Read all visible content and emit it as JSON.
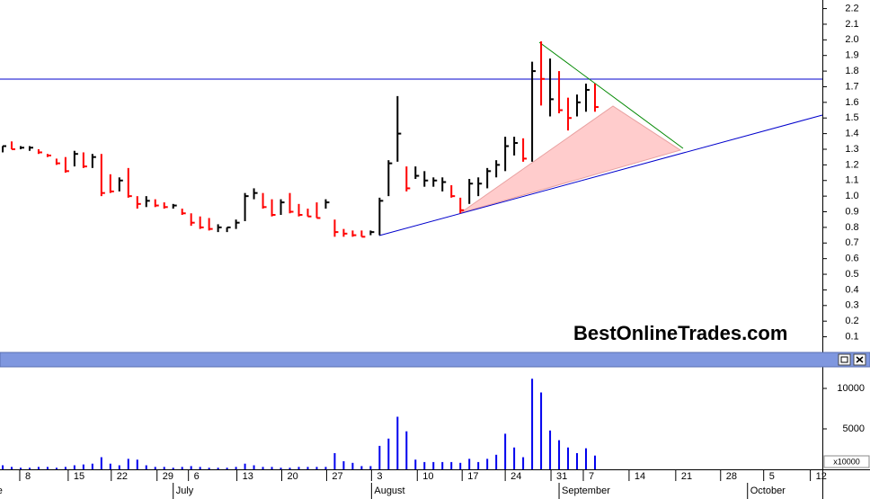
{
  "chart_data": [
    {
      "type": "hlc",
      "annotation": "BestOnlineTrades.com",
      "x": [
        -2.5,
        -1.5,
        -0.5,
        0.5,
        1.5,
        2.5,
        3.5,
        4.5,
        5.5,
        6.5,
        7.5,
        8.5,
        9.5,
        10.5,
        11.5,
        12.5,
        13.5,
        14.5,
        15.5,
        16.5,
        17.5,
        18.5,
        19.5,
        20.5,
        21.5,
        22.5,
        23.5,
        24.5,
        25.5,
        26.5,
        27.5,
        28.5,
        29.5,
        30.5,
        31.5,
        32.5,
        33.5,
        34.5,
        35.5,
        36.5,
        37.5,
        38.5,
        39.5,
        40.5,
        41.5,
        42.5,
        43.5,
        44.5,
        45.5,
        46.5,
        47.5,
        48.5,
        49.5,
        50.5,
        51.5,
        52.5,
        53.5,
        54.5,
        55.5,
        56.5,
        57.5,
        58.5,
        59.5,
        60.5,
        61.5,
        62.5,
        63.5
      ],
      "high": [
        1.32,
        1.35,
        1.32,
        1.32,
        1.3,
        1.27,
        1.24,
        1.25,
        1.29,
        1.28,
        1.27,
        1.27,
        1.14,
        1.12,
        1.18,
        1.0,
        1.0,
        0.98,
        0.96,
        0.95,
        0.92,
        0.89,
        0.87,
        0.86,
        0.82,
        0.8,
        0.85,
        1.02,
        1.05,
        1.02,
        0.98,
        0.98,
        1.02,
        0.95,
        0.92,
        0.96,
        0.98,
        0.85,
        0.79,
        0.78,
        0.78,
        0.78,
        0.99,
        1.23,
        1.64,
        1.19,
        1.19,
        1.16,
        1.12,
        1.12,
        1.07,
        0.99,
        1.11,
        1.12,
        1.18,
        1.23,
        1.38,
        1.38,
        1.37,
        1.86,
        1.99,
        1.88,
        1.8,
        1.63,
        1.65,
        1.72,
        1.72
      ],
      "low": [
        1.28,
        1.3,
        1.3,
        1.29,
        1.27,
        1.25,
        1.2,
        1.15,
        1.19,
        1.18,
        1.18,
        1.0,
        1.02,
        1.03,
        0.99,
        0.92,
        0.93,
        0.93,
        0.92,
        0.92,
        0.88,
        0.81,
        0.79,
        0.78,
        0.77,
        0.77,
        0.79,
        0.84,
        0.98,
        0.92,
        0.87,
        0.88,
        0.89,
        0.87,
        0.87,
        0.86,
        0.92,
        0.74,
        0.74,
        0.74,
        0.74,
        0.75,
        0.75,
        1.0,
        1.22,
        1.03,
        1.11,
        1.06,
        1.06,
        1.03,
        0.99,
        0.89,
        0.95,
        1.0,
        1.05,
        1.12,
        1.16,
        1.26,
        1.22,
        1.22,
        1.58,
        1.51,
        1.53,
        1.42,
        1.51,
        1.54,
        1.54
      ],
      "close": [
        1.32,
        1.3,
        1.31,
        1.31,
        1.28,
        1.26,
        1.21,
        1.16,
        1.27,
        1.19,
        1.25,
        1.02,
        1.03,
        1.1,
        1.0,
        0.95,
        0.97,
        0.94,
        0.93,
        0.94,
        0.89,
        0.83,
        0.8,
        0.79,
        0.8,
        0.8,
        0.83,
        1.0,
        1.02,
        0.93,
        0.88,
        0.96,
        0.9,
        0.88,
        0.87,
        0.86,
        0.96,
        0.77,
        0.76,
        0.75,
        0.74,
        0.77,
        0.97,
        1.21,
        1.4,
        1.05,
        1.13,
        1.1,
        1.1,
        1.09,
        1.0,
        0.91,
        1.08,
        1.08,
        1.16,
        1.2,
        1.32,
        1.34,
        1.24,
        1.8,
        1.75,
        1.62,
        1.55,
        1.5,
        1.6,
        1.68,
        1.57
      ],
      "colors": [
        "#000000",
        "#ff0000",
        "#000000",
        "#000000",
        "#ff0000",
        "#ff0000",
        "#ff0000",
        "#ff0000",
        "#000000",
        "#ff0000",
        "#000000",
        "#ff0000",
        "#ff0000",
        "#000000",
        "#ff0000",
        "#ff0000",
        "#000000",
        "#ff0000",
        "#ff0000",
        "#000000",
        "#ff0000",
        "#ff0000",
        "#ff0000",
        "#ff0000",
        "#000000",
        "#000000",
        "#000000",
        "#000000",
        "#000000",
        "#ff0000",
        "#ff0000",
        "#000000",
        "#ff0000",
        "#ff0000",
        "#ff0000",
        "#ff0000",
        "#000000",
        "#ff0000",
        "#ff0000",
        "#ff0000",
        "#ff0000",
        "#000000",
        "#000000",
        "#000000",
        "#000000",
        "#ff0000",
        "#000000",
        "#000000",
        "#000000",
        "#000000",
        "#ff0000",
        "#ff0000",
        "#000000",
        "#000000",
        "#000000",
        "#000000",
        "#000000",
        "#000000",
        "#ff0000",
        "#000000",
        "#ff0000",
        "#000000",
        "#ff0000",
        "#ff0000",
        "#000000",
        "#000000",
        "#ff0000"
      ],
      "xlim": [
        -2.8,
        88.84
      ],
      "ylim": [
        0.04,
        2.255
      ],
      "yticks": [
        0.1,
        0.2,
        0.3,
        0.4,
        0.5,
        0.6,
        0.7,
        0.8,
        0.9,
        {
          "value": 1,
          "label": "1.0"
        },
        1.1,
        1.2,
        1.3,
        1.4,
        1.5,
        1.6,
        1.7,
        1.8,
        1.9,
        {
          "value": 2,
          "label": "2.0"
        },
        2.1,
        2.2
      ]
    },
    {
      "type": "bar",
      "x": [
        -2.5,
        -1.5,
        -0.5,
        0.5,
        1.5,
        2.5,
        3.5,
        4.5,
        5.5,
        6.5,
        7.5,
        8.5,
        9.5,
        10.5,
        11.5,
        12.5,
        13.5,
        14.5,
        15.5,
        16.5,
        17.5,
        18.5,
        19.5,
        20.5,
        21.5,
        22.5,
        23.5,
        24.5,
        25.5,
        26.5,
        27.5,
        28.5,
        29.5,
        30.5,
        31.5,
        32.5,
        33.5,
        34.5,
        35.5,
        36.5,
        37.5,
        38.5,
        39.5,
        40.5,
        41.5,
        42.5,
        43.5,
        44.5,
        45.5,
        46.5,
        47.5,
        48.5,
        49.5,
        50.5,
        51.5,
        52.5,
        53.5,
        54.5,
        55.5,
        56.5,
        57.5,
        58.5,
        59.5,
        60.5,
        61.5,
        62.5,
        63.5
      ],
      "values": [
        500,
        300,
        200,
        200,
        300,
        300,
        200,
        300,
        500,
        600,
        700,
        1500,
        700,
        500,
        1300,
        1200,
        500,
        300,
        300,
        200,
        300,
        400,
        300,
        200,
        200,
        200,
        300,
        700,
        500,
        300,
        300,
        200,
        200,
        300,
        300,
        300,
        300,
        2000,
        1000,
        800,
        400,
        400,
        2900,
        3800,
        6500,
        4700,
        1200,
        900,
        900,
        900,
        900,
        800,
        1300,
        900,
        1300,
        1800,
        4400,
        2700,
        1500,
        11200,
        9500,
        4800,
        3600,
        2700,
        2000,
        2600,
        1700
      ],
      "color": "#0000ee",
      "scale_label": "x10000",
      "xlim": [
        -2.8,
        88.84
      ],
      "ylim": [
        0,
        12667
      ],
      "yticks": [
        5000,
        10000
      ],
      "xticks": [
        {
          "value": 0,
          "label": "8"
        },
        {
          "value": 5.4,
          "label": "15"
        },
        {
          "value": 10.2,
          "label": "22"
        },
        {
          "value": 15.3,
          "label": "29"
        },
        {
          "value": 18.8,
          "label": "6"
        },
        {
          "value": 24.2,
          "label": "13"
        },
        {
          "value": 29.2,
          "label": "20"
        },
        {
          "value": 34.2,
          "label": "27"
        },
        {
          "value": 39.2,
          "label": "3"
        },
        {
          "value": 44.3,
          "label": "10"
        },
        {
          "value": 49.3,
          "label": "17"
        },
        {
          "value": 54.1,
          "label": "24"
        },
        {
          "value": 59.2,
          "label": "31"
        },
        {
          "value": 62.8,
          "label": "7"
        },
        {
          "value": 67.9,
          "label": "14"
        },
        {
          "value": 73.1,
          "label": "21"
        },
        {
          "value": 78.1,
          "label": "28"
        },
        {
          "value": 82.9,
          "label": "5"
        },
        {
          "value": 88.1,
          "label": "12"
        }
      ],
      "month_ticks": [
        {
          "value": -5.2,
          "label": "June"
        },
        {
          "value": 16.5,
          "label": "July"
        },
        {
          "value": 38.6,
          "label": "August"
        },
        {
          "value": 59.5,
          "label": "September"
        },
        {
          "value": 80.5,
          "label": "October"
        }
      ]
    }
  ]
}
